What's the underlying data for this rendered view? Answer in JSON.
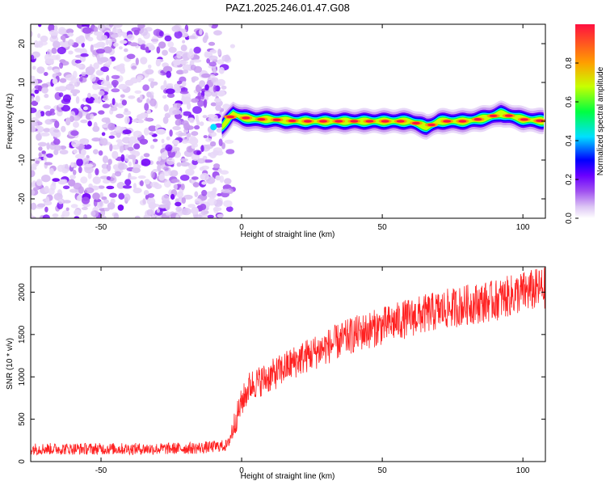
{
  "title": "PAZ1.2025.246.01.47.G08",
  "chart_data": [
    {
      "type": "heatmap",
      "xlabel": "Height of straight line (km)",
      "ylabel": "Frequency (Hz)",
      "xlim": [
        -75,
        108
      ],
      "ylim": [
        -25,
        25
      ],
      "xticks": [
        -50,
        0,
        50,
        100
      ],
      "yticks": [
        -20,
        -10,
        0,
        10,
        20
      ],
      "noise_region_x": [
        -75,
        -7
      ],
      "ridge": {
        "x": [
          -7,
          -3,
          0,
          5,
          10,
          20,
          30,
          40,
          50,
          60,
          66,
          70,
          80,
          88,
          92,
          100,
          108
        ],
        "freq": [
          -1.5,
          2.0,
          1.0,
          0.5,
          0.5,
          0.0,
          0.0,
          0.0,
          0.0,
          0.0,
          -1.5,
          0.0,
          0.0,
          1.0,
          2.0,
          0.5,
          0.0
        ]
      },
      "colorbar": {
        "label": "Normalized spectral amplitude",
        "range": [
          0,
          1
        ],
        "ticks": [
          0.0,
          0.2,
          0.4,
          0.6,
          0.8
        ],
        "colors": [
          "#ffffff",
          "#dcc4f4",
          "#a050f0",
          "#6a00ff",
          "#0000ff",
          "#00e0ff",
          "#00ff40",
          "#c8ff00",
          "#ffa000",
          "#ff1040"
        ]
      },
      "grid": false
    },
    {
      "type": "line",
      "xlabel": "Height of straight line (km)",
      "ylabel": "SNR (10 * v/v)",
      "xlim": [
        -75,
        108
      ],
      "ylim": [
        0,
        2300
      ],
      "xticks": [
        -50,
        0,
        50,
        100
      ],
      "yticks": [
        0,
        500,
        1000,
        1500,
        2000
      ],
      "color": "#ff2020",
      "grid": false,
      "x": [
        -75,
        -60,
        -45,
        -30,
        -15,
        -5,
        -3,
        0,
        3,
        10,
        15,
        20,
        30,
        40,
        50,
        60,
        70,
        80,
        90,
        100,
        108
      ],
      "values": [
        150,
        150,
        150,
        150,
        160,
        190,
        400,
        700,
        900,
        1000,
        1100,
        1200,
        1350,
        1500,
        1600,
        1700,
        1780,
        1850,
        1900,
        2000,
        2050
      ]
    }
  ]
}
